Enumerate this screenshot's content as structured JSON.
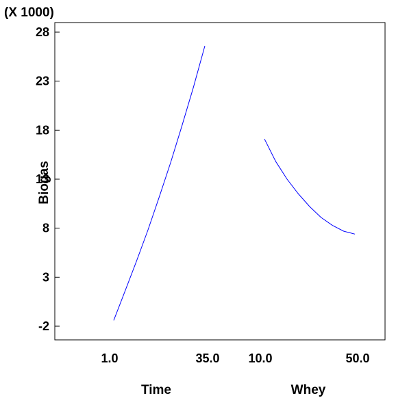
{
  "chart_data": {
    "type": "line",
    "title": "",
    "multiplier_label": "(X 1000)",
    "ylabel": "Biogas",
    "ylim": [
      -4,
      29
    ],
    "yticks": [
      -2,
      3,
      8,
      13,
      18,
      23,
      28
    ],
    "ytick_labels": [
      "-2",
      "3",
      "8",
      "13",
      "18",
      "23",
      "28"
    ],
    "line_color": "#0000ff",
    "panels": [
      {
        "xlabel": "Time",
        "x_range": [
          1.0,
          35.0
        ],
        "xtick_labels": [
          "1.0",
          "35.0"
        ],
        "series": [
          {
            "x": [
              1.0,
              5.25,
              9.5,
              13.75,
              18.0,
              22.25,
              26.5,
              30.75,
              35.0
            ],
            "y": [
              -1.4,
              1.6,
              4.65,
              7.8,
              11.2,
              14.7,
              18.5,
              22.4,
              26.6
            ]
          }
        ]
      },
      {
        "xlabel": "Whey",
        "x_range": [
          10.0,
          50.0
        ],
        "xtick_labels": [
          "10.0",
          "50.0"
        ],
        "series": [
          {
            "x": [
              10.0,
              15.0,
              20.0,
              25.0,
              30.0,
              35.0,
              40.0,
              45.0,
              50.0
            ],
            "y": [
              17.1,
              14.8,
              13.0,
              11.5,
              10.2,
              9.1,
              8.3,
              7.7,
              7.4
            ]
          }
        ]
      }
    ]
  }
}
